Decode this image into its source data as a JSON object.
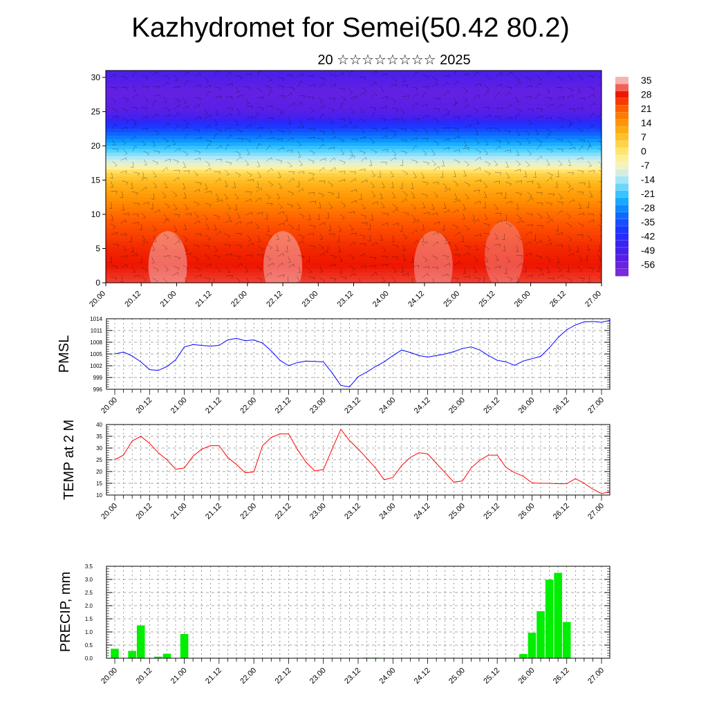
{
  "title": "Kazhydromet for Semei(50.42 80.2)",
  "subtitle": "20 ☆☆☆☆☆☆☆☆ 2025",
  "chart_data": [
    {
      "type": "heatmap",
      "ylim": [
        0,
        31
      ],
      "y_ticks": [
        "0",
        "5",
        "10",
        "15",
        "20",
        "25",
        "30"
      ],
      "x_ticks": [
        "20.00",
        "20.12",
        "21.00",
        "21.12",
        "22.00",
        "22.12",
        "23.00",
        "23.12",
        "24.00",
        "24.12",
        "25.00",
        "25.12",
        "26.00",
        "26.12",
        "27.00"
      ],
      "colorbar": {
        "labels": [
          "35",
          "28",
          "21",
          "14",
          "7",
          "0",
          "-7",
          "-14",
          "-21",
          "-28",
          "-35",
          "-42",
          "-49",
          "-56"
        ],
        "colors": [
          "#f5b8b8",
          "#e60000",
          "#ff2d00",
          "#ff6a00",
          "#ffa200",
          "#ffd23c",
          "#fff2a0",
          "#c8f0ff",
          "#3cc8ff",
          "#0a96ff",
          "#0a50ff",
          "#1e28ff",
          "#4016e6",
          "#8c3cf0"
        ]
      },
      "field_bands": [
        {
          "y": 31,
          "value": -52
        },
        {
          "y": 28,
          "value": -58
        },
        {
          "y": 25,
          "value": -56
        },
        {
          "y": 22,
          "value": -36
        },
        {
          "y": 19.5,
          "value": -22
        },
        {
          "y": 17,
          "value": -8
        },
        {
          "y": 16,
          "value": 2
        },
        {
          "y": 14.5,
          "value": 8
        },
        {
          "y": 12,
          "value": 14
        },
        {
          "y": 9,
          "value": 21
        },
        {
          "y": 5,
          "value": 26
        },
        {
          "y": 0,
          "value": 30
        }
      ],
      "warm_spots": [
        {
          "x": 3.5,
          "y": 2.5,
          "value": 35
        },
        {
          "x": 10,
          "y": 2.5,
          "value": 35
        },
        {
          "x": 18.5,
          "y": 2.5,
          "value": 34
        },
        {
          "x": 22.5,
          "y": 4,
          "value": 33
        }
      ]
    },
    {
      "type": "line",
      "ylabel": "PMSL",
      "x_ticks": [
        "20.00",
        "20.12",
        "21.00",
        "21.12",
        "22.00",
        "22.12",
        "23.00",
        "23.12",
        "24.00",
        "24.12",
        "25.00",
        "25.12",
        "26.00",
        "26.12",
        "27.00"
      ],
      "y_ticks": [
        "996",
        "999",
        "1002",
        "1005",
        "1008",
        "1011",
        "1014"
      ],
      "ylim": [
        996,
        1014
      ],
      "color": "#0000ff",
      "values": [
        1005,
        1005.5,
        1004.5,
        1003,
        1001,
        1000.8,
        1001.8,
        1003.5,
        1006.8,
        1007.4,
        1007.2,
        1007,
        1007.2,
        1008.6,
        1009,
        1008.4,
        1008.6,
        1007.8,
        1005.8,
        1003.4,
        1002,
        1002.8,
        1003.2,
        1003.1,
        1003,
        1000.2,
        997,
        996.6,
        999.2,
        1000.4,
        1001.8,
        1003,
        1004.6,
        1006,
        1005.4,
        1004.6,
        1004.2,
        1004.6,
        1005,
        1005.6,
        1006.4,
        1006.8,
        1006,
        1004.6,
        1003.4,
        1003,
        1002.1,
        1003.2,
        1003.8,
        1004.4,
        1006.6,
        1009.2,
        1011.2,
        1012.4,
        1013.2,
        1013.3,
        1013.1,
        1013.6
      ]
    },
    {
      "type": "line",
      "ylabel": "TEMP at 2 M",
      "x_ticks": [
        "20.00",
        "20.12",
        "21.00",
        "21.12",
        "22.00",
        "22.12",
        "23.00",
        "23.12",
        "24.00",
        "24.12",
        "25.00",
        "25.12",
        "26.00",
        "26.12",
        "27.00"
      ],
      "y_ticks": [
        "10",
        "15",
        "20",
        "25",
        "30",
        "35",
        "40"
      ],
      "ylim": [
        10,
        40
      ],
      "color": "#ff0000",
      "values": [
        25,
        27,
        33,
        35,
        32,
        28,
        25,
        21,
        21.5,
        26.5,
        29.5,
        31,
        31,
        26,
        23,
        19.5,
        19.8,
        31,
        34.5,
        36,
        36,
        29.5,
        24,
        20.3,
        20.8,
        29.5,
        38,
        33.2,
        29.6,
        25.6,
        21.5,
        16.5,
        17.5,
        22.5,
        26,
        28,
        27.5,
        23.5,
        19.5,
        15.5,
        16,
        21.5,
        24.8,
        27,
        27,
        21.8,
        19.5,
        18,
        15.2,
        15,
        15,
        14.8,
        14.8,
        17,
        15,
        12.5,
        10.6,
        11.5
      ]
    },
    {
      "type": "bar",
      "ylabel": "PRECIP, mm",
      "x_ticks": [
        "20.00",
        "20.12",
        "21.00",
        "21.12",
        "22.00",
        "22.12",
        "23.00",
        "23.12",
        "24.00",
        "24.12",
        "25.00",
        "25.12",
        "26.00",
        "26.12",
        "27.00"
      ],
      "y_ticks": [
        "0.0",
        "0.5",
        "1.0",
        "1.5",
        "2.0",
        "2.5",
        "3.0",
        "3.5"
      ],
      "ylim": [
        0,
        3.5
      ],
      "color": "#00ee00",
      "bars": [
        {
          "t": 0,
          "value": 0.36
        },
        {
          "t": 2,
          "value": 0.28
        },
        {
          "t": 3,
          "value": 1.25
        },
        {
          "t": 5,
          "value": 0.06
        },
        {
          "t": 6,
          "value": 0.17
        },
        {
          "t": 8,
          "value": 0.92
        },
        {
          "t": 29,
          "value": 0.02
        },
        {
          "t": 30,
          "value": 0.02
        },
        {
          "t": 47,
          "value": 0.16
        },
        {
          "t": 48,
          "value": 0.97
        },
        {
          "t": 49,
          "value": 1.79
        },
        {
          "t": 50,
          "value": 2.99
        },
        {
          "t": 51,
          "value": 3.25
        },
        {
          "t": 52,
          "value": 1.38
        }
      ]
    }
  ]
}
